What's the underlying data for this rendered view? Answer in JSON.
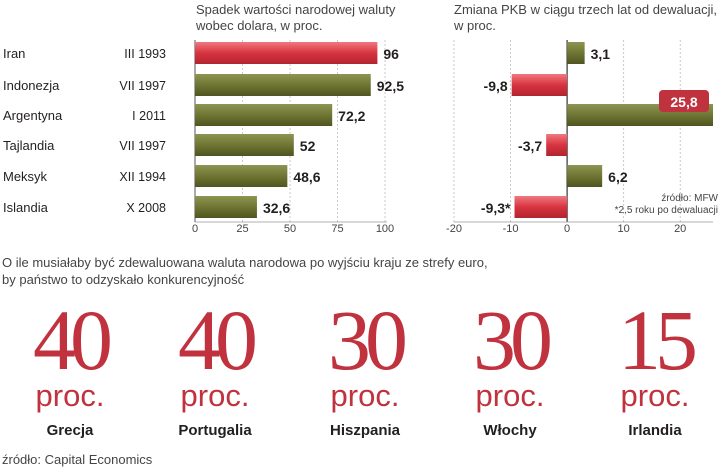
{
  "chart_data": [
    {
      "type": "bar",
      "orientation": "horizontal",
      "title": "Spadek wartości narodowej waluty wobec dolara, w proc.",
      "title_lines": [
        "Spadek wartości narodowej waluty",
        "wobec dolara, w proc."
      ],
      "categories": [
        "Iran",
        "Indonezja",
        "Argentyna",
        "Tajlandia",
        "Meksyk",
        "Islandia"
      ],
      "periods": [
        "III 1993",
        "VII 1997",
        "I 2011",
        "VII 1997",
        "XII 1994",
        "X 2008"
      ],
      "values": [
        96,
        92.5,
        72.2,
        52,
        48.6,
        32.6
      ],
      "value_labels": [
        "96",
        "92,5",
        "72,2",
        "52",
        "48,6",
        "32,6"
      ],
      "xlim": [
        0,
        100
      ],
      "xticks": [
        0,
        25,
        50,
        75,
        100
      ],
      "xtick_labels": [
        "0",
        "25",
        "50",
        "75",
        "100"
      ],
      "grid": true,
      "highlight_index": 0,
      "colors": {
        "highlight": "#d8343f",
        "normal": "#6f7532"
      }
    },
    {
      "type": "bar",
      "orientation": "horizontal",
      "title": "Zmiana PKB w ciągu trzech lat od dewaluacji, w proc.",
      "title_lines": [
        "Zmiana PKB w ciągu trzech lat od dewaluacji,",
        "w proc."
      ],
      "categories": [
        "Iran",
        "Indonezja",
        "Argentyna",
        "Tajlandia",
        "Meksyk",
        "Islandia"
      ],
      "values": [
        3.1,
        -9.8,
        25.8,
        -3.7,
        6.2,
        -9.3
      ],
      "value_labels": [
        "3,1",
        "-9,8",
        "25,8",
        "-3,7",
        "6,2",
        "-9,3*"
      ],
      "xlim": [
        -20,
        25.8
      ],
      "xticks": [
        -20,
        -10,
        0,
        10,
        20
      ],
      "xtick_labels": [
        "-20",
        "-10",
        "0",
        "10",
        "20"
      ],
      "grid": true,
      "notes": [
        "źródło: MFW",
        "*2,5 roku po dewaluacji"
      ],
      "colors": {
        "negative": "#d8343f",
        "positive": "#6f7532",
        "label_box": "#c0323e"
      }
    }
  ],
  "question": {
    "line1": "O ile musiałaby być zdewaluowana waluta narodowa po wyjściu kraju ze strefy euro,",
    "line2": "by państwo to odzyskało konkurencyjność"
  },
  "devaluations": [
    {
      "value": "40",
      "unit": "proc.",
      "country": "Grecja"
    },
    {
      "value": "40",
      "unit": "proc.",
      "country": "Portugalia"
    },
    {
      "value": "30",
      "unit": "proc.",
      "country": "Hiszpania"
    },
    {
      "value": "30",
      "unit": "proc.",
      "country": "Włochy"
    },
    {
      "value": "15",
      "unit": "proc.",
      "country": "Irlandia"
    }
  ],
  "source": "źródło: Capital Economics"
}
